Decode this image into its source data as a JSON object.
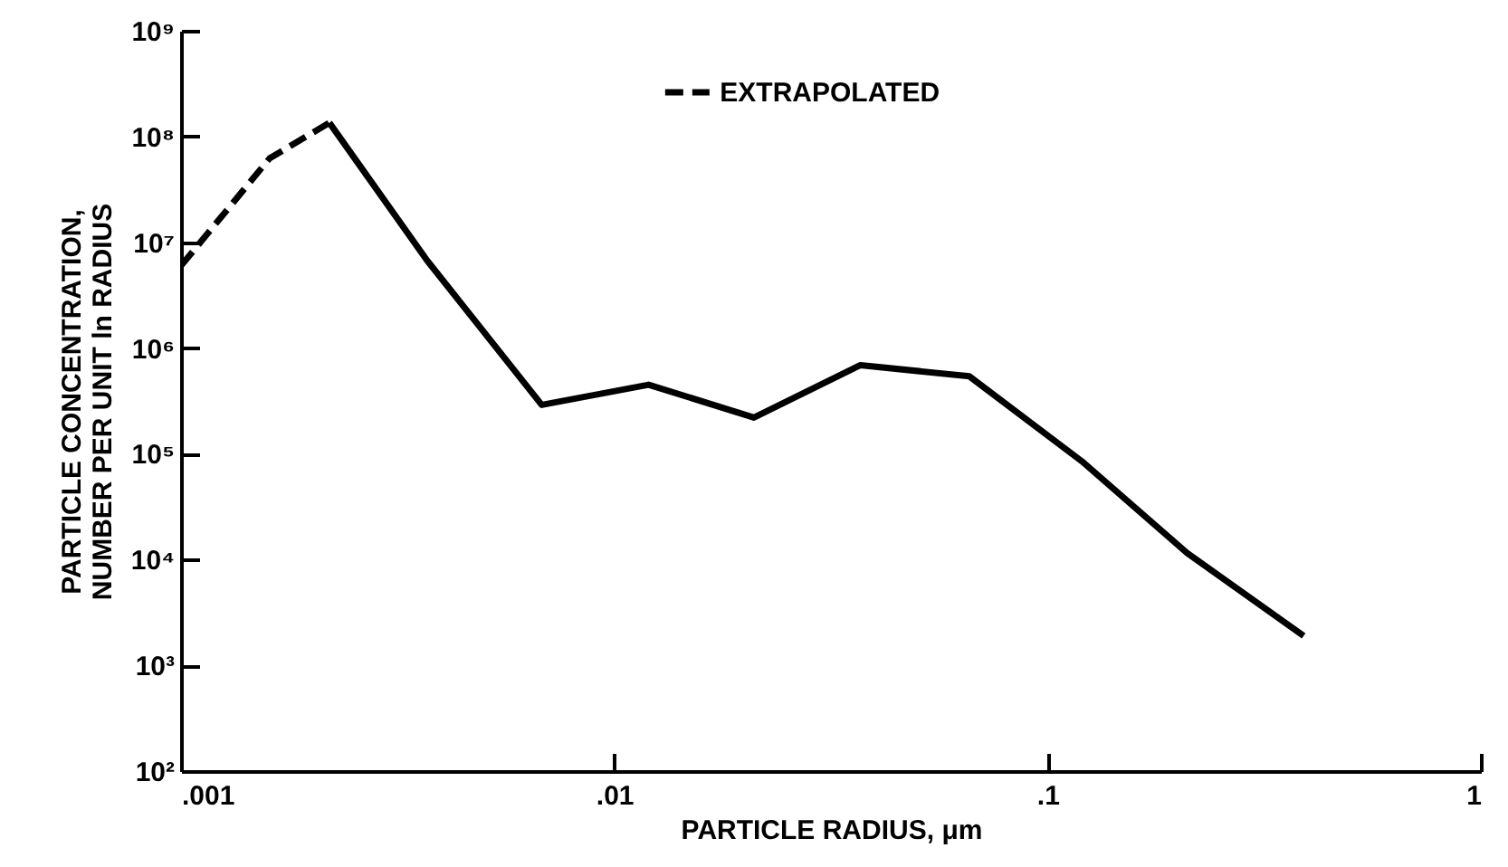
{
  "chart_data": {
    "type": "line",
    "xlabel": "PARTICLE RADIUS, μm",
    "ylabel": "PARTICLE CONCENTRATION,\nNUMBER PER UNIT ln RADIUS",
    "log": "xy",
    "xlim": [
      0.001,
      1
    ],
    "xticks": [
      {
        "value": 0.001,
        "label": ".001"
      },
      {
        "value": 0.01,
        "label": ".01"
      },
      {
        "value": 0.1,
        "label": ".1"
      },
      1
    ],
    "ylim": [
      100,
      1000000000
    ],
    "yticks": [
      {
        "value": 100,
        "label": "10²"
      },
      {
        "value": 1000,
        "label": "10³"
      },
      {
        "value": 10000,
        "label": "10⁴"
      },
      {
        "value": 100000,
        "label": "10⁵"
      },
      {
        "value": 1000000,
        "label": "10⁶"
      },
      {
        "value": 10000000,
        "label": "10⁷"
      },
      {
        "value": 100000000,
        "label": "10⁸"
      },
      {
        "value": 1000000000,
        "label": "10⁹"
      }
    ],
    "grid": false,
    "legend": "top",
    "series": [
      {
        "name": "EXTRAPOLATED",
        "color": "#000000",
        "line_style": "dashed",
        "x": [
          0.001,
          0.0016,
          0.0022
        ],
        "values": [
          6000000,
          62000000,
          135000000
        ]
      },
      {
        "color": "#000000",
        "line_style": "solid",
        "x": [
          0.0022,
          0.0037,
          0.0068,
          0.012,
          0.021,
          0.037,
          0.066,
          0.12,
          0.21,
          0.39
        ],
        "values": [
          135000000,
          6700000,
          290000,
          450000,
          220000,
          690000,
          540000,
          85000,
          11500,
          1900
        ]
      }
    ]
  }
}
